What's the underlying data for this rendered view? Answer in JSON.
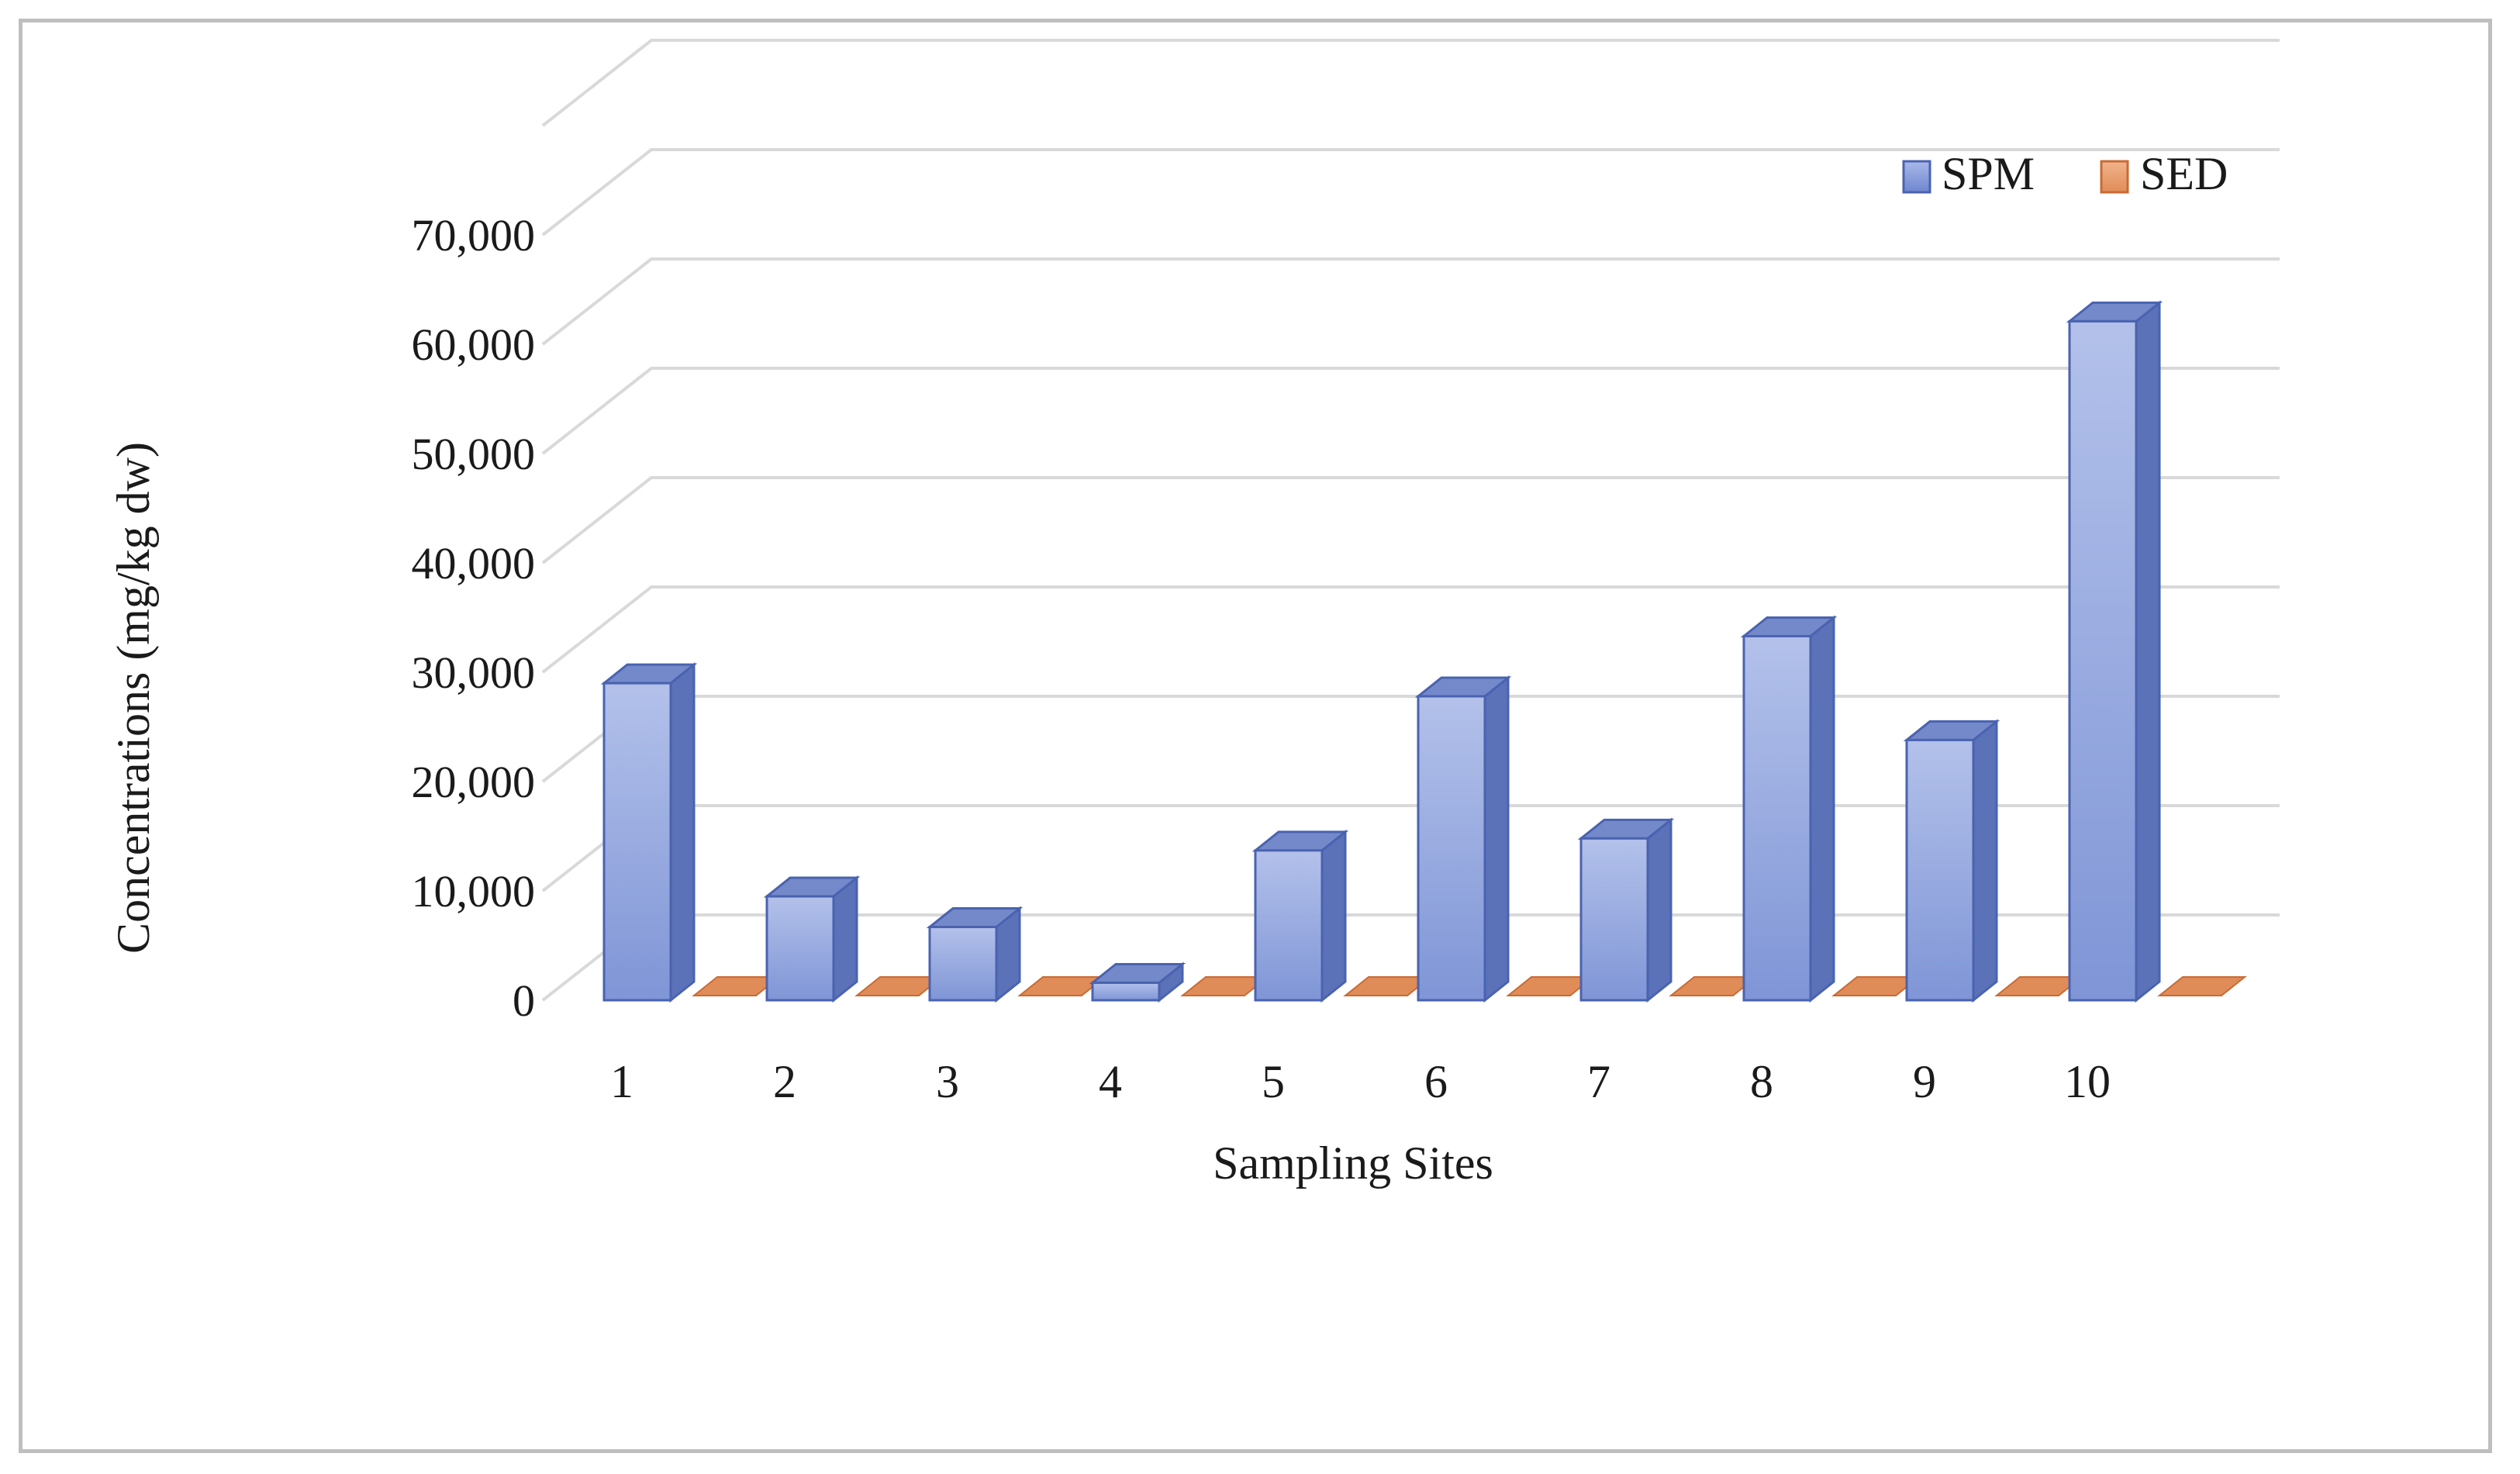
{
  "chart_data": {
    "type": "bar",
    "title": "",
    "xlabel": "Sampling Sites",
    "ylabel": "Concentrations (mg/kg dw)",
    "categories": [
      "1",
      "2",
      "3",
      "4",
      "5",
      "6",
      "7",
      "8",
      "9",
      "10"
    ],
    "series": [
      {
        "name": "SPM",
        "values": [
          29000,
          9500,
          6700,
          1600,
          13700,
          27800,
          14800,
          33300,
          23800,
          62100
        ]
      },
      {
        "name": "SED",
        "values": [
          0,
          0,
          0,
          0,
          0,
          0,
          0,
          0,
          0,
          0
        ]
      }
    ],
    "ylim": [
      0,
      70000
    ],
    "yticks": [
      "0",
      "10,000",
      "20,000",
      "30,000",
      "40,000",
      "50,000",
      "60,000",
      "70,000"
    ],
    "grid": true,
    "legend_position": "top-right",
    "style": "3d-clustered-column",
    "colors": {
      "SPM_front": "#8ea3dd",
      "SPM_side": "#5b72b8",
      "SPM_top": "#7489c9",
      "SPM_edge": "#4a63b0",
      "SED": "#e08c58",
      "SED_edge": "#c86b35",
      "grid": "#d9d9d9"
    }
  }
}
